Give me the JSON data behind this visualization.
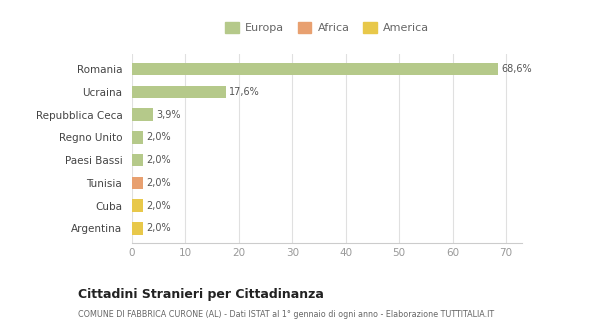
{
  "categories": [
    "Argentina",
    "Cuba",
    "Tunisia",
    "Paesi Bassi",
    "Regno Unito",
    "Repubblica Ceca",
    "Ucraina",
    "Romania"
  ],
  "values": [
    2.0,
    2.0,
    2.0,
    2.0,
    2.0,
    3.9,
    17.6,
    68.6
  ],
  "labels": [
    "2,0%",
    "2,0%",
    "2,0%",
    "2,0%",
    "2,0%",
    "3,9%",
    "17,6%",
    "68,6%"
  ],
  "colors": [
    "#e8c84a",
    "#e8c84a",
    "#e8a070",
    "#b5c98a",
    "#b5c98a",
    "#b5c98a",
    "#b5c98a",
    "#b5c98a"
  ],
  "legend": [
    {
      "label": "Europa",
      "color": "#b5c98a"
    },
    {
      "label": "Africa",
      "color": "#e8a070"
    },
    {
      "label": "America",
      "color": "#e8c84a"
    }
  ],
  "xlim": [
    0,
    73
  ],
  "xticks": [
    0,
    10,
    20,
    30,
    40,
    50,
    60,
    70
  ],
  "title": "Cittadini Stranieri per Cittadinanza",
  "subtitle": "COMUNE DI FABBRICA CURONE (AL) - Dati ISTAT al 1° gennaio di ogni anno - Elaborazione TUTTITALIA.IT",
  "bg_color": "#ffffff",
  "bar_height": 0.55
}
